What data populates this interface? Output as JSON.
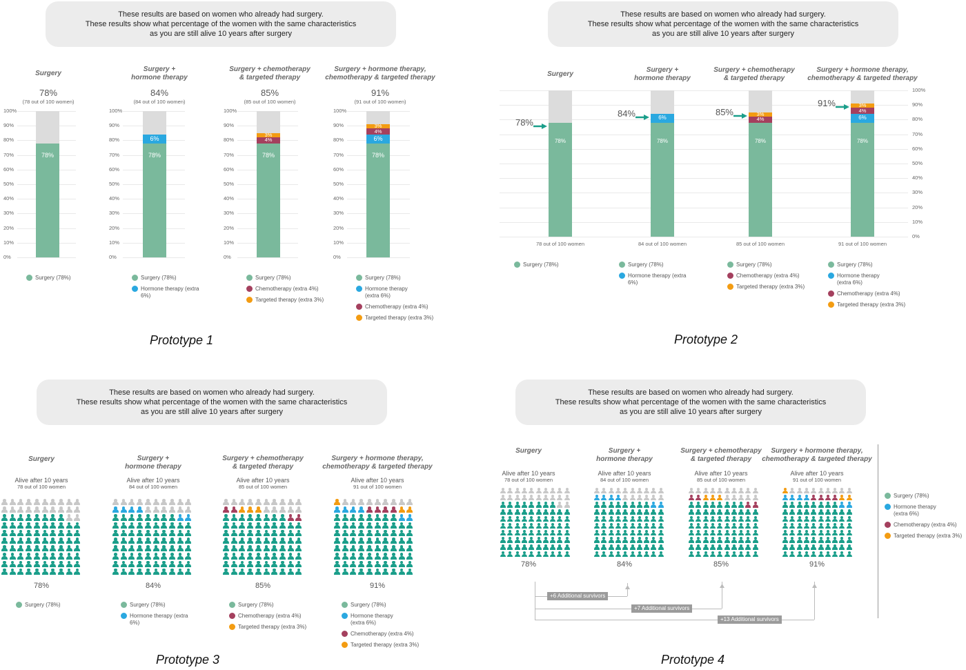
{
  "colors": {
    "surgery": "#7ab99c",
    "hormone": "#2aa8e0",
    "chemo": "#a4405e",
    "targeted": "#f39c12",
    "remaining": "#dcdcdc",
    "icon_surgery": "#1a9e8a",
    "icon_remaining": "#c8c8c8"
  },
  "info_lines": [
    "These results are based on women who already had surgery.",
    "These results show what percentage of the women with the same characteristics",
    "as you are still alive 10 years after surgery"
  ],
  "prototype_labels": [
    "Prototype 1",
    "Prototype 2",
    "Prototype 3",
    "Prototype 4"
  ],
  "scenarios": [
    {
      "title_lines": [
        "Surgery"
      ],
      "total_pct": "78%",
      "total_n": "78 out of 100 women",
      "total_n_paren": "(78 out of 100 women)",
      "segments": [
        {
          "type": "surgery",
          "value": 78,
          "label": "78%"
        }
      ],
      "legend": [
        {
          "type": "surgery",
          "label": "Surgery (78%)"
        }
      ]
    },
    {
      "title_lines": [
        "Surgery +",
        "hormone therapy"
      ],
      "total_pct": "84%",
      "total_n": "84 out of 100 women",
      "total_n_paren": "(84 out of 100 women)",
      "segments": [
        {
          "type": "surgery",
          "value": 78,
          "label": "78%"
        },
        {
          "type": "hormone",
          "value": 6,
          "label": "6%"
        }
      ],
      "legend": [
        {
          "type": "surgery",
          "label": "Surgery (78%)"
        },
        {
          "type": "hormone",
          "label": "Hormone therapy (extra 6%)"
        }
      ]
    },
    {
      "title_lines": [
        "Surgery + chemotherapy",
        "& targeted therapy"
      ],
      "total_pct": "85%",
      "total_n": "85 out of 100 women",
      "total_n_paren": "(85 out of 100 women)",
      "segments": [
        {
          "type": "surgery",
          "value": 78,
          "label": "78%"
        },
        {
          "type": "chemo",
          "value": 4,
          "label": "4%"
        },
        {
          "type": "targeted",
          "value": 3,
          "label": "3%"
        }
      ],
      "legend": [
        {
          "type": "surgery",
          "label": "Surgery (78%)"
        },
        {
          "type": "chemo",
          "label": "Chemotherapy (extra 4%)"
        },
        {
          "type": "targeted",
          "label": "Targeted therapy (extra 3%)"
        }
      ]
    },
    {
      "title_lines": [
        "Surgery + hormone therapy,",
        "chemotherapy & targeted therapy"
      ],
      "total_pct": "91%",
      "total_n": "91 out of 100 women",
      "total_n_paren": "(91 out of 100 women)",
      "segments": [
        {
          "type": "surgery",
          "value": 78,
          "label": "78%"
        },
        {
          "type": "hormone",
          "value": 6,
          "label": "6%"
        },
        {
          "type": "chemo",
          "value": 4,
          "label": "4%"
        },
        {
          "type": "targeted",
          "value": 3,
          "label": "3%"
        }
      ],
      "legend": [
        {
          "type": "surgery",
          "label": "Surgery (78%)"
        },
        {
          "type": "hormone",
          "label": "Hormone therapy (extra 6%)"
        },
        {
          "type": "chemo",
          "label": "Chemotherapy (extra 4%)"
        },
        {
          "type": "targeted",
          "label": "Targeted therapy (extra 3%)"
        }
      ]
    }
  ],
  "proto2_legend_wrap": {
    "hormone_b": [
      "Hormone therapy (extra",
      "6%)"
    ],
    "hormone_d": [
      "Hormone therapy",
      "(extra 6%)"
    ]
  },
  "y_ticks": [
    "0%",
    "10%",
    "20%",
    "30%",
    "40%",
    "50%",
    "60%",
    "70%",
    "80%",
    "90%",
    "100%"
  ],
  "alive_label": "Alive after 10 years",
  "proto4_legend": [
    {
      "type": "surgery",
      "lines": [
        "Surgery (78%)"
      ]
    },
    {
      "type": "hormone",
      "lines": [
        "Hormone therapy",
        "(extra 6%)"
      ]
    },
    {
      "type": "chemo",
      "lines": [
        "Chemotherapy (extra 4%)"
      ]
    },
    {
      "type": "targeted",
      "lines": [
        "Targeted therapy (extra 3%)"
      ]
    }
  ],
  "survivor_labels": [
    "+6 Additional survivors",
    "+7 Additional survivors",
    "+13 Additional survivors"
  ],
  "chart_data": [
    {
      "type": "bar",
      "title": "Prototype 1",
      "categories": [
        "Surgery",
        "Surgery + hormone therapy",
        "Surgery + chemotherapy & targeted therapy",
        "Surgery + hormone therapy, chemotherapy & targeted therapy"
      ],
      "series": [
        {
          "name": "Surgery",
          "values": [
            78,
            78,
            78,
            78
          ]
        },
        {
          "name": "Hormone therapy",
          "values": [
            0,
            6,
            0,
            6
          ]
        },
        {
          "name": "Chemotherapy",
          "values": [
            0,
            0,
            4,
            4
          ]
        },
        {
          "name": "Targeted therapy",
          "values": [
            0,
            0,
            3,
            3
          ]
        }
      ],
      "ylim": [
        0,
        100
      ]
    },
    {
      "type": "bar",
      "title": "Prototype 2",
      "categories": [
        "Surgery",
        "Surgery + hormone therapy",
        "Surgery + chemotherapy & targeted therapy",
        "Surgery + hormone therapy, chemotherapy & targeted therapy"
      ],
      "series": [
        {
          "name": "Surgery",
          "values": [
            78,
            78,
            78,
            78
          ]
        },
        {
          "name": "Hormone therapy",
          "values": [
            0,
            6,
            0,
            6
          ]
        },
        {
          "name": "Chemotherapy",
          "values": [
            0,
            0,
            4,
            4
          ]
        },
        {
          "name": "Targeted therapy",
          "values": [
            0,
            0,
            3,
            3
          ]
        }
      ],
      "ylim": [
        0,
        100
      ]
    }
  ]
}
